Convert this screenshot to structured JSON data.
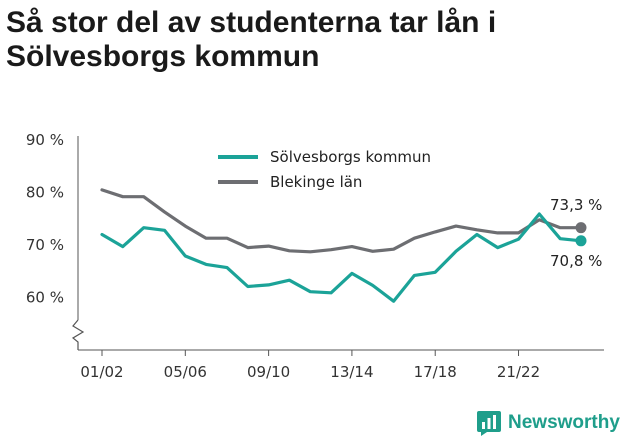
{
  "title": "Så stor del av studenterna tar lån i Sölvesborgs kommun",
  "brand": {
    "name": "Newsworthy",
    "icon": "newsworthy-logo-icon",
    "color": "#1f9e8b"
  },
  "chart_data": {
    "type": "line",
    "ylim": [
      50,
      90
    ],
    "yticks": [
      {
        "value": 60,
        "label": "60 %"
      },
      {
        "value": 70,
        "label": "70 %"
      },
      {
        "value": 80,
        "label": "80 %"
      },
      {
        "value": 90,
        "label": "90 %"
      }
    ],
    "axis_break": true,
    "grid": false,
    "legend_position": "top",
    "x": [
      "01/02",
      "02/03",
      "03/04",
      "04/05",
      "05/06",
      "06/07",
      "07/08",
      "08/09",
      "09/10",
      "10/11",
      "11/12",
      "12/13",
      "13/14",
      "14/15",
      "15/16",
      "16/17",
      "17/18",
      "18/19",
      "19/20",
      "20/21",
      "21/22",
      "22/23",
      "23/24",
      "24/25"
    ],
    "xtick_labels": [
      "01/02",
      "05/06",
      "09/10",
      "13/14",
      "17/18",
      "21/22"
    ],
    "series": [
      {
        "name": "Sölvesborgs kommun",
        "color": "#1ba398",
        "values": [
          72,
          69.7,
          73.3,
          72.8,
          67.9,
          66.3,
          65.7,
          62.1,
          62.4,
          63.3,
          61.1,
          60.9,
          64.6,
          62.3,
          59.3,
          64.2,
          64.8,
          68.8,
          72.0,
          69.5,
          71.1,
          75.9,
          71.2,
          70.8
        ],
        "end_label": "70,8 %"
      },
      {
        "name": "Blekinge län",
        "color": "#6d6e72",
        "values": [
          80.5,
          79.2,
          79.2,
          76.3,
          73.6,
          71.3,
          71.3,
          69.5,
          69.8,
          68.9,
          68.7,
          69.1,
          69.7,
          68.8,
          69.2,
          71.3,
          72.5,
          73.6,
          72.9,
          72.3,
          72.3,
          74.8,
          73.3,
          73.3
        ],
        "end_label": "73,3 %"
      }
    ]
  }
}
